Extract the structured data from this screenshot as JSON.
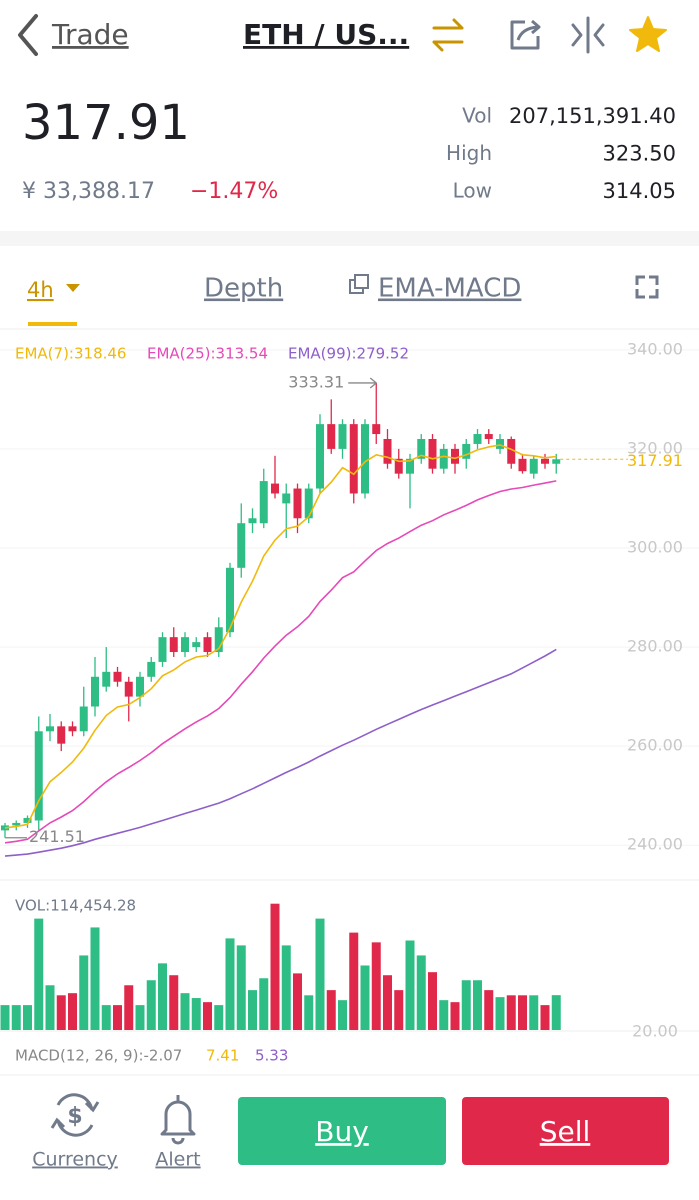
{
  "header": {
    "back": "Trade",
    "pair": "ETH / US..."
  },
  "ticker": {
    "price": "317.91",
    "fiat": "¥ 33,388.17",
    "change": "−1.47%",
    "stats": [
      {
        "label": "Vol",
        "value": "207,151,391.40"
      },
      {
        "label": "High",
        "value": "323.50"
      },
      {
        "label": "Low",
        "value": "314.05"
      }
    ]
  },
  "tabs": {
    "interval": "4h",
    "depth": "Depth",
    "indicator": "EMA-MACD"
  },
  "chart_data": {
    "type": "candlestick",
    "up_color": "#2ebd85",
    "down_color": "#e0294a",
    "open": [
      243,
      244,
      244.5,
      245,
      263,
      264,
      264,
      263,
      268,
      272,
      275,
      273,
      270,
      274,
      277,
      282,
      279,
      280,
      282,
      279,
      283,
      296,
      305,
      305,
      313,
      309,
      312,
      306,
      312,
      325,
      320,
      325,
      311,
      325,
      322,
      318,
      315,
      318,
      322,
      316,
      320,
      318,
      321,
      323,
      320,
      322,
      318,
      315,
      318,
      317
    ],
    "high": [
      244.5,
      245,
      246,
      266,
      266.5,
      265,
      265,
      272,
      278,
      280,
      276,
      274,
      275,
      278,
      283,
      284,
      283,
      282,
      283,
      286,
      297,
      309,
      308,
      316,
      318.6,
      313,
      313,
      313,
      327,
      330,
      326,
      326,
      326,
      333.31,
      324,
      320,
      319,
      323,
      323,
      321,
      321,
      322,
      324,
      324,
      323,
      322.5,
      319,
      318.5,
      319,
      319
    ],
    "low": [
      241.51,
      243,
      243.5,
      243,
      261,
      259,
      262,
      262,
      266,
      271,
      272,
      265,
      268,
      273,
      276,
      278,
      278,
      279,
      278,
      278,
      282,
      294,
      303,
      304,
      310,
      302,
      303,
      305,
      311,
      319,
      318,
      309,
      310,
      321,
      316,
      314,
      308,
      317,
      315,
      315,
      315,
      316,
      320,
      321,
      319,
      316,
      315,
      314,
      316,
      315
    ],
    "close": [
      244,
      244.5,
      245.5,
      263,
      264,
      260.5,
      263,
      268,
      274,
      275,
      273,
      270,
      274,
      277,
      282,
      279,
      282,
      281,
      279,
      284,
      296,
      305,
      306,
      313.5,
      311,
      311,
      306,
      312,
      325,
      320,
      325,
      311,
      325,
      323,
      317,
      315,
      318,
      322,
      316,
      320,
      317,
      321,
      323,
      322,
      322,
      317,
      315.5,
      318,
      317,
      317.91
    ],
    "volume": [
      81750,
      81750,
      81750,
      366000,
      147000,
      114000,
      121000,
      245000,
      337000,
      81750,
      81750,
      147000,
      81750,
      163500,
      219000,
      180000,
      121000,
      105000,
      91500,
      81750,
      301000,
      278000,
      131000,
      170000,
      415000,
      278000,
      186000,
      114000,
      366000,
      131000,
      98000,
      320000,
      212000,
      288000,
      180000,
      131000,
      294000,
      245000,
      190000,
      98000,
      91500,
      163500,
      163500,
      131000,
      108000,
      114000,
      114000,
      114000,
      81750,
      114454.28
    ],
    "vlim": [
      0,
      460000
    ],
    "volume_label": "VOL:114,454.28",
    "series": [
      {
        "name": "EMA(7)",
        "label": "EMA(7):318.46",
        "color": "#f0b90b",
        "values": [
          243.5,
          243.8,
          244.2,
          249,
          252.8,
          254.7,
          256.8,
          259.6,
          263.2,
          266.2,
          267.9,
          268.4,
          269.8,
          271.6,
          274.2,
          275.4,
          277,
          278,
          278.3,
          279.7,
          283.8,
          289.1,
          293.3,
          298.4,
          301.6,
          303.9,
          304.4,
          306.3,
          311,
          313.3,
          316.2,
          314.9,
          317.4,
          318.8,
          318.3,
          317.5,
          317.6,
          318.7,
          318,
          318.5,
          318.1,
          318.8,
          319.8,
          320.4,
          320.8,
          319.9,
          318.8,
          318.6,
          318.2,
          318.46
        ]
      },
      {
        "name": "EMA(25)",
        "label": "EMA(25):313.54",
        "color": "#e649b8",
        "values": [
          240.5,
          240.8,
          241.2,
          242.9,
          244.5,
          245.7,
          247,
          248.8,
          250.9,
          252.8,
          254.4,
          255.7,
          257.1,
          258.7,
          260.5,
          262,
          263.5,
          264.9,
          266.1,
          267.6,
          269.8,
          272.5,
          275,
          277.8,
          280.2,
          282.4,
          284.1,
          286.2,
          289.2,
          291.5,
          294,
          295.2,
          297.4,
          299.5,
          300.9,
          302,
          303.3,
          304.6,
          305.5,
          306.7,
          307.6,
          308.6,
          309.7,
          310.6,
          311.4,
          311.9,
          312.2,
          312.7,
          313.1,
          313.54
        ]
      },
      {
        "name": "EMA(99)",
        "label": "EMA(99):279.52",
        "color": "#8e5fc9",
        "values": [
          237.8,
          238,
          238.2,
          238.6,
          239,
          239.4,
          239.9,
          240.5,
          241.2,
          241.8,
          242.4,
          243,
          243.6,
          244.3,
          245,
          245.7,
          246.4,
          247.1,
          247.8,
          248.5,
          249.4,
          250.4,
          251.4,
          252.5,
          253.6,
          254.7,
          255.7,
          256.8,
          258,
          259.1,
          260.2,
          261.2,
          262.3,
          263.4,
          264.4,
          265.4,
          266.4,
          267.4,
          268.3,
          269.2,
          270.1,
          271,
          271.9,
          272.8,
          273.7,
          274.6,
          275.8,
          277,
          278.2,
          279.52
        ]
      }
    ],
    "ylim": [
      235,
      344
    ],
    "yticks": [
      {
        "value": 240,
        "label": "240.00"
      },
      {
        "value": 260,
        "label": "260.00"
      },
      {
        "value": 280,
        "label": "280.00"
      },
      {
        "value": 300,
        "label": "300.00"
      },
      {
        "value": 320,
        "label": "320.00"
      },
      {
        "value": 340,
        "label": "340.00"
      }
    ],
    "grid": true,
    "price_line": 317.91,
    "high_marker": 333.31,
    "low_marker": 241.51,
    "macd_tick": "20.00",
    "macd_labels": [
      {
        "text": "MACD(12, 26, 9):-2.07",
        "color": "#888888"
      },
      {
        "text": "7.41",
        "color": "#f0b90b"
      },
      {
        "text": "5.33",
        "color": "#8e5fc9"
      }
    ]
  },
  "footer": {
    "currency": "Currency",
    "alert": "Alert",
    "buy": "Buy",
    "sell": "Sell"
  }
}
